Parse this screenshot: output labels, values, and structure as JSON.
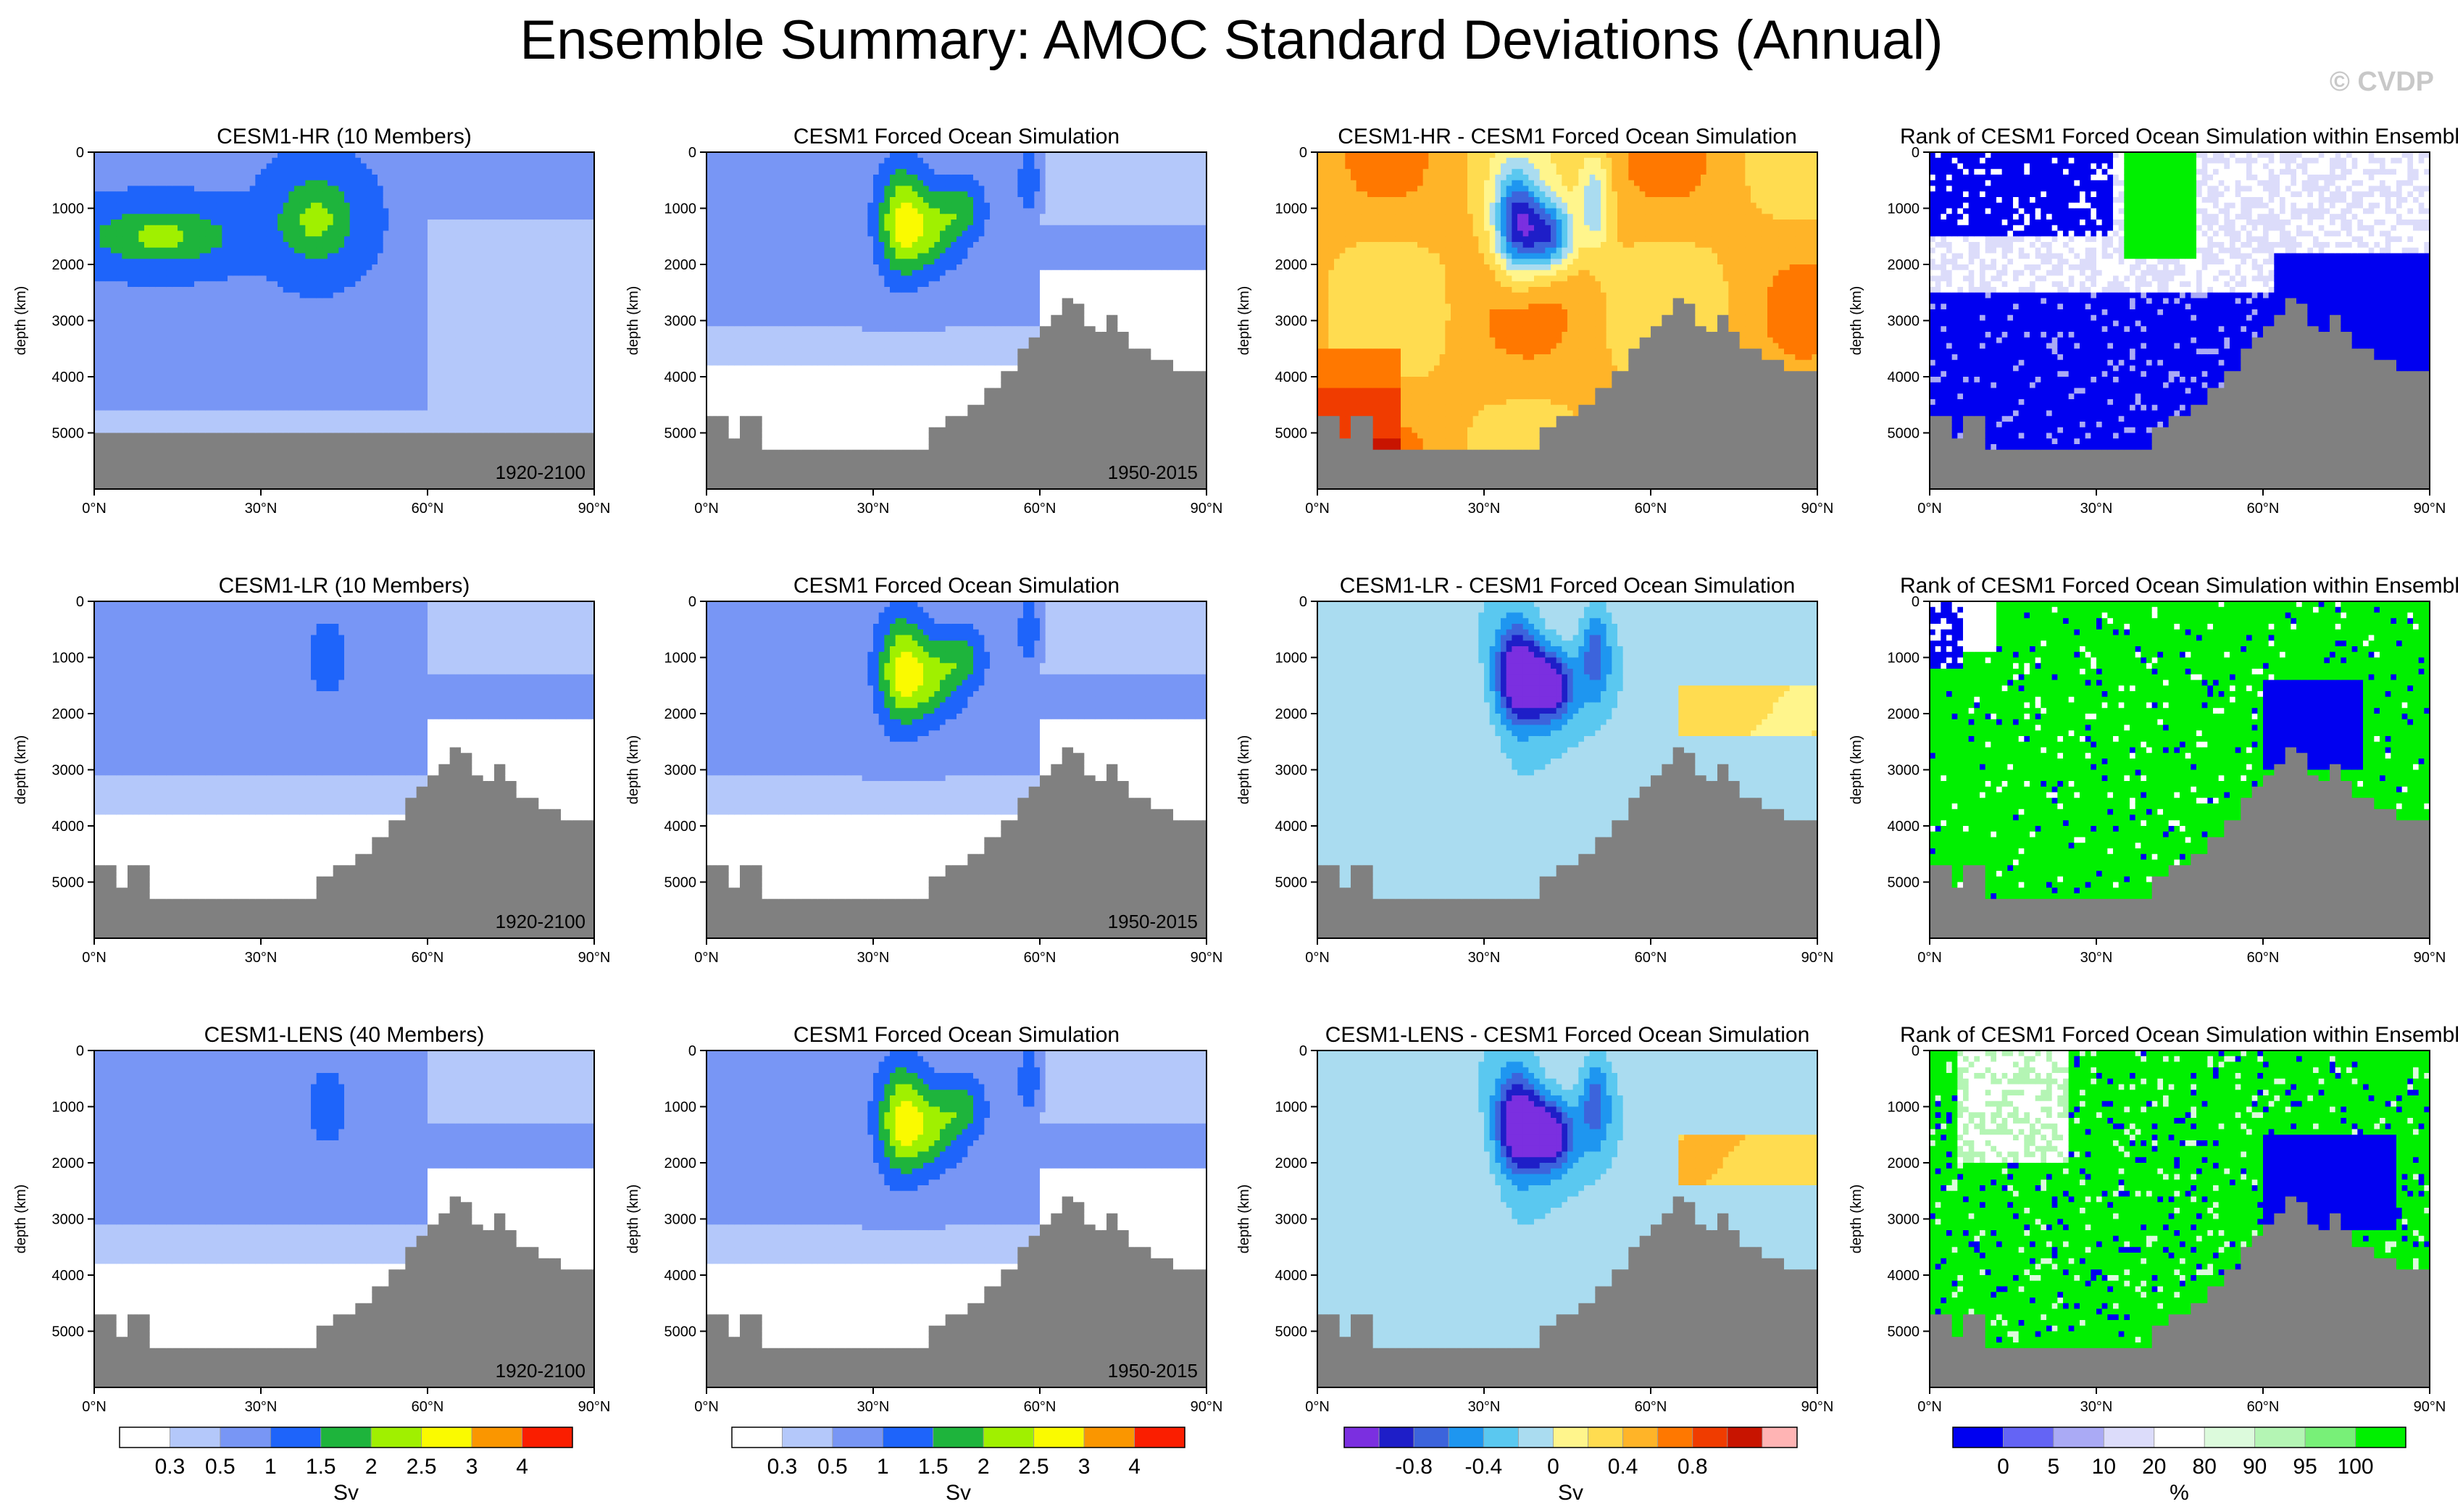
{
  "title": "Ensemble Summary: AMOC Standard Deviations (Annual)",
  "watermark": "© CVDP",
  "colors": {
    "sd": [
      "#ffffff",
      "#b4c8fa",
      "#7896f5",
      "#1e64fa",
      "#1eb43c",
      "#a0f000",
      "#fafa00",
      "#fa9600",
      "#fa1e00"
    ],
    "diff": [
      "#7b2fe0",
      "#1e1ec8",
      "#3c64dc",
      "#1e96f0",
      "#5ac8f0",
      "#aadcf0",
      "#fff58c",
      "#ffdc50",
      "#ffb428",
      "#ff7800",
      "#f03c00",
      "#c81400",
      "#ffb4b4"
    ],
    "rank": [
      "#0000f0",
      "#6464f5",
      "#aaaaf5",
      "#dcdcfa",
      "#ffffff",
      "#dcfadc",
      "#b4f5b4",
      "#78f078",
      "#00f000"
    ],
    "land": "#808080"
  },
  "labels": {
    "ylabel": "depth (km)"
  },
  "colorbars": [
    {
      "unit": "Sv",
      "ticks": [
        "0.3",
        "0.5",
        "1",
        "1.5",
        "2",
        "2.5",
        "3",
        "4"
      ]
    },
    {
      "unit": "Sv",
      "ticks": [
        "0.3",
        "0.5",
        "1",
        "1.5",
        "2",
        "2.5",
        "3",
        "4"
      ]
    },
    {
      "unit": "Sv",
      "ticks": [
        "-0.8",
        "-0.4",
        "0",
        "0.4",
        "0.8"
      ]
    },
    {
      "unit": "%",
      "ticks": [
        "0",
        "5",
        "10",
        "20",
        "80",
        "90",
        "95",
        "100"
      ]
    }
  ],
  "chart_data": [
    {
      "type": "heatmap",
      "title": "CESM1-HR (10 Members)",
      "period": "1920-2100",
      "kind": "sd",
      "row": 0,
      "col": 0,
      "xlim": [
        0,
        90
      ],
      "ylim": [
        0,
        6000
      ],
      "xticks": [
        "0°N",
        "30°N",
        "60°N",
        "90°N"
      ],
      "yticks": [
        "0",
        "1000",
        "2000",
        "3000",
        "4000",
        "5000"
      ]
    },
    {
      "type": "heatmap",
      "title": "CESM1 Forced Ocean Simulation",
      "period": "1950-2015",
      "kind": "sd",
      "row": 0,
      "col": 1,
      "xlim": [
        0,
        90
      ],
      "ylim": [
        0,
        6000
      ],
      "xticks": [
        "0°N",
        "30°N",
        "60°N",
        "90°N"
      ],
      "yticks": [
        "0",
        "1000",
        "2000",
        "3000",
        "4000",
        "5000"
      ]
    },
    {
      "type": "heatmap",
      "title": "CESM1-HR - CESM1 Forced Ocean Simulation",
      "period": "",
      "kind": "diffHR",
      "row": 0,
      "col": 2,
      "xlim": [
        0,
        90
      ],
      "ylim": [
        0,
        6000
      ],
      "xticks": [
        "0°N",
        "30°N",
        "60°N",
        "90°N"
      ],
      "yticks": [
        "0",
        "1000",
        "2000",
        "3000",
        "4000",
        "5000"
      ]
    },
    {
      "type": "heatmap",
      "title": "Rank of CESM1 Forced Ocean Simulation within Ensembl",
      "period": "",
      "kind": "rankHR",
      "row": 0,
      "col": 3,
      "xlim": [
        0,
        90
      ],
      "ylim": [
        0,
        6000
      ],
      "xticks": [
        "0°N",
        "30°N",
        "60°N",
        "90°N"
      ],
      "yticks": [
        "0",
        "1000",
        "2000",
        "3000",
        "4000",
        "5000"
      ]
    },
    {
      "type": "heatmap",
      "title": "CESM1-LR (10 Members)",
      "period": "1920-2100",
      "kind": "sd",
      "row": 1,
      "col": 0,
      "xlim": [
        0,
        90
      ],
      "ylim": [
        0,
        6000
      ],
      "xticks": [
        "0°N",
        "30°N",
        "60°N",
        "90°N"
      ],
      "yticks": [
        "0",
        "1000",
        "2000",
        "3000",
        "4000",
        "5000"
      ]
    },
    {
      "type": "heatmap",
      "title": "CESM1 Forced Ocean Simulation",
      "period": "1950-2015",
      "kind": "sd",
      "row": 1,
      "col": 1,
      "xlim": [
        0,
        90
      ],
      "ylim": [
        0,
        6000
      ],
      "xticks": [
        "0°N",
        "30°N",
        "60°N",
        "90°N"
      ],
      "yticks": [
        "0",
        "1000",
        "2000",
        "3000",
        "4000",
        "5000"
      ]
    },
    {
      "type": "heatmap",
      "title": "CESM1-LR - CESM1 Forced Ocean Simulation",
      "period": "",
      "kind": "diffLR",
      "row": 1,
      "col": 2,
      "xlim": [
        0,
        90
      ],
      "ylim": [
        0,
        6000
      ],
      "xticks": [
        "0°N",
        "30°N",
        "60°N",
        "90°N"
      ],
      "yticks": [
        "0",
        "1000",
        "2000",
        "3000",
        "4000",
        "5000"
      ]
    },
    {
      "type": "heatmap",
      "title": "Rank of CESM1 Forced Ocean Simulation within Ensembl",
      "period": "",
      "kind": "rankLR",
      "row": 1,
      "col": 3,
      "xlim": [
        0,
        90
      ],
      "ylim": [
        0,
        6000
      ],
      "xticks": [
        "0°N",
        "30°N",
        "60°N",
        "90°N"
      ],
      "yticks": [
        "0",
        "1000",
        "2000",
        "3000",
        "4000",
        "5000"
      ]
    },
    {
      "type": "heatmap",
      "title": "CESM1-LENS (40 Members)",
      "period": "1920-2100",
      "kind": "sd",
      "row": 2,
      "col": 0,
      "xlim": [
        0,
        90
      ],
      "ylim": [
        0,
        6000
      ],
      "xticks": [
        "0°N",
        "30°N",
        "60°N",
        "90°N"
      ],
      "yticks": [
        "0",
        "1000",
        "2000",
        "3000",
        "4000",
        "5000"
      ]
    },
    {
      "type": "heatmap",
      "title": "CESM1 Forced Ocean Simulation",
      "period": "1950-2015",
      "kind": "sd",
      "row": 2,
      "col": 1,
      "xlim": [
        0,
        90
      ],
      "ylim": [
        0,
        6000
      ],
      "xticks": [
        "0°N",
        "30°N",
        "60°N",
        "90°N"
      ],
      "yticks": [
        "0",
        "1000",
        "2000",
        "3000",
        "4000",
        "5000"
      ]
    },
    {
      "type": "heatmap",
      "title": "CESM1-LENS - CESM1 Forced Ocean Simulation",
      "period": "",
      "kind": "diffLENS",
      "row": 2,
      "col": 2,
      "xlim": [
        0,
        90
      ],
      "ylim": [
        0,
        6000
      ],
      "xticks": [
        "0°N",
        "30°N",
        "60°N",
        "90°N"
      ],
      "yticks": [
        "0",
        "1000",
        "2000",
        "3000",
        "4000",
        "5000"
      ]
    },
    {
      "type": "heatmap",
      "title": "Rank of CESM1 Forced Ocean Simulation within Ensembl",
      "period": "",
      "kind": "rankLENS",
      "row": 2,
      "col": 3,
      "xlim": [
        0,
        90
      ],
      "ylim": [
        0,
        6000
      ],
      "xticks": [
        "0°N",
        "30°N",
        "60°N",
        "90°N"
      ],
      "yticks": [
        "0",
        "1000",
        "2000",
        "3000",
        "4000",
        "5000"
      ]
    }
  ]
}
